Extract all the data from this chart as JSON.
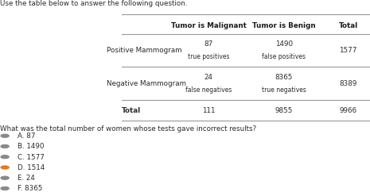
{
  "title": "Use the table below to answer the following question.",
  "col_headers": [
    "",
    "Tumor is Malignant",
    "Tumor is Benign",
    "Total"
  ],
  "row1_label": "Positive Mammogram",
  "row1_val1": "87",
  "row1_sub1": "true positives",
  "row1_val2": "1490",
  "row1_sub2": "false positives",
  "row1_total": "1577",
  "row2_label": "Negative Mammogram",
  "row2_val1": "24",
  "row2_sub1": "false negatives",
  "row2_val2": "8365",
  "row2_sub2": "true negatives",
  "row2_total": "8389",
  "total_label": "Total",
  "total_val1": "111",
  "total_val2": "9855",
  "total_total": "9966",
  "question": "What was the total number of women whose tests gave incorrect results?",
  "choices": [
    "A. 87",
    "B. 1490",
    "C. 1577",
    "D. 1514",
    "E. 24",
    "F. 8365"
  ],
  "selected": 3,
  "bg_color": "#ffffff",
  "text_color": "#2b2b2b",
  "header_color": "#1a1a1a",
  "selected_color": "#e87722",
  "line_color": "#999999"
}
